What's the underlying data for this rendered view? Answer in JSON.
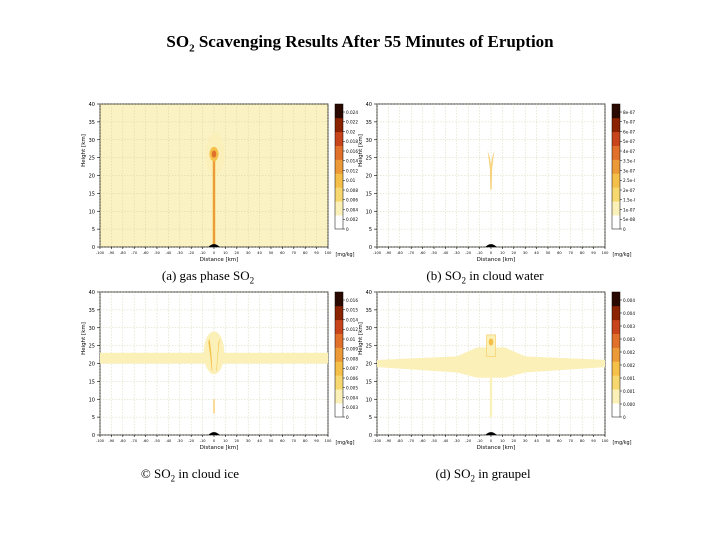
{
  "title": {
    "pre": "SO",
    "sub": "2",
    "post": " Scavenging Results After 55 Minutes of Eruption"
  },
  "colors": {
    "light": "#fbf0b8",
    "mid": "#f5c04a",
    "hot": "#e0702a",
    "max": "#8b2200",
    "dark": "#2a0a00",
    "grid": "#c9c9a0"
  },
  "chart_data": [
    {
      "type": "heatmap",
      "caption": {
        "pre": "(a) gas phase SO",
        "sub": "2",
        "post": ""
      },
      "ylabel": "Height [km]",
      "xlabel": "Distance [km]",
      "unit": "[mg/kg]",
      "xlim": [
        -100,
        100
      ],
      "ylim": [
        0,
        40
      ],
      "x_ticks": [
        "-100",
        "-90",
        "-80",
        "-70",
        "-60",
        "-50",
        "-40",
        "-30",
        "-20",
        "-10",
        "0",
        "10",
        "20",
        "30",
        "40",
        "50",
        "60",
        "70",
        "80",
        "90",
        "100"
      ],
      "y_ticks": [
        "0",
        "5",
        "10",
        "15",
        "20",
        "25",
        "30",
        "35",
        "40"
      ],
      "colorbar_ticks": [
        "0.024",
        "0.022",
        "0.02",
        "0.018",
        "0.016",
        "0.014",
        "0.012",
        "0.01",
        "0.008",
        "0.006",
        "0.004",
        "0.002",
        "0"
      ]
    },
    {
      "type": "heatmap",
      "caption": {
        "pre": "(b) SO",
        "sub": "2",
        "post": " in cloud water"
      },
      "ylabel": "Height [km]",
      "xlabel": "Distance [km]",
      "unit": "[mg/kg]",
      "xlim": [
        -100,
        100
      ],
      "ylim": [
        0,
        40
      ],
      "x_ticks": [
        "-100",
        "-90",
        "-80",
        "-70",
        "-60",
        "-50",
        "-40",
        "-30",
        "-20",
        "-10",
        "0",
        "10",
        "20",
        "30",
        "40",
        "50",
        "60",
        "70",
        "80",
        "90",
        "100"
      ],
      "y_ticks": [
        "0",
        "5",
        "10",
        "15",
        "20",
        "25",
        "30",
        "35",
        "40"
      ],
      "colorbar_ticks": [
        "8e-07",
        "7e-07",
        "6e-07",
        "5e-07",
        "4e-07",
        "3.5e-07",
        "3e-07",
        "2.5e-07",
        "2e-07",
        "1.5e-07",
        "1e-07",
        "5e-08",
        "0"
      ]
    },
    {
      "type": "heatmap",
      "caption": {
        "pre": "© SO",
        "sub": "2",
        "post": " in cloud ice"
      },
      "ylabel": "Height [km]",
      "xlabel": "Distance [km]",
      "unit": "[mg/kg]",
      "xlim": [
        -100,
        100
      ],
      "ylim": [
        0,
        40
      ],
      "x_ticks": [
        "-100",
        "-90",
        "-80",
        "-70",
        "-60",
        "-50",
        "-40",
        "-30",
        "-20",
        "-10",
        "0",
        "10",
        "20",
        "30",
        "40",
        "50",
        "60",
        "70",
        "80",
        "90",
        "100"
      ],
      "y_ticks": [
        "0",
        "5",
        "10",
        "15",
        "20",
        "25",
        "30",
        "35",
        "40"
      ],
      "colorbar_ticks": [
        "0.016",
        "0.015",
        "0.014",
        "0.012",
        "0.01",
        "0.009",
        "0.008",
        "0.007",
        "0.006",
        "0.005",
        "0.004",
        "0.003",
        "0"
      ]
    },
    {
      "type": "heatmap",
      "caption": {
        "pre": "(d) SO",
        "sub": "2",
        "post": " in graupel"
      },
      "ylabel": "Height [km]",
      "xlabel": "Distance [km]",
      "unit": "[mg/kg]",
      "xlim": [
        -100,
        100
      ],
      "ylim": [
        0,
        40
      ],
      "x_ticks": [
        "-100",
        "-90",
        "-80",
        "-70",
        "-60",
        "-50",
        "-40",
        "-30",
        "-20",
        "-10",
        "0",
        "10",
        "20",
        "30",
        "40",
        "50",
        "60",
        "70",
        "80",
        "90",
        "100"
      ],
      "y_ticks": [
        "0",
        "5",
        "10",
        "15",
        "20",
        "25",
        "30",
        "35",
        "40"
      ],
      "colorbar_ticks": [
        "0.0045",
        "0.004",
        "0.0035",
        "0.003",
        "0.0025",
        "0.002",
        "0.0015",
        "0.001",
        "0.0005",
        "0"
      ]
    }
  ]
}
